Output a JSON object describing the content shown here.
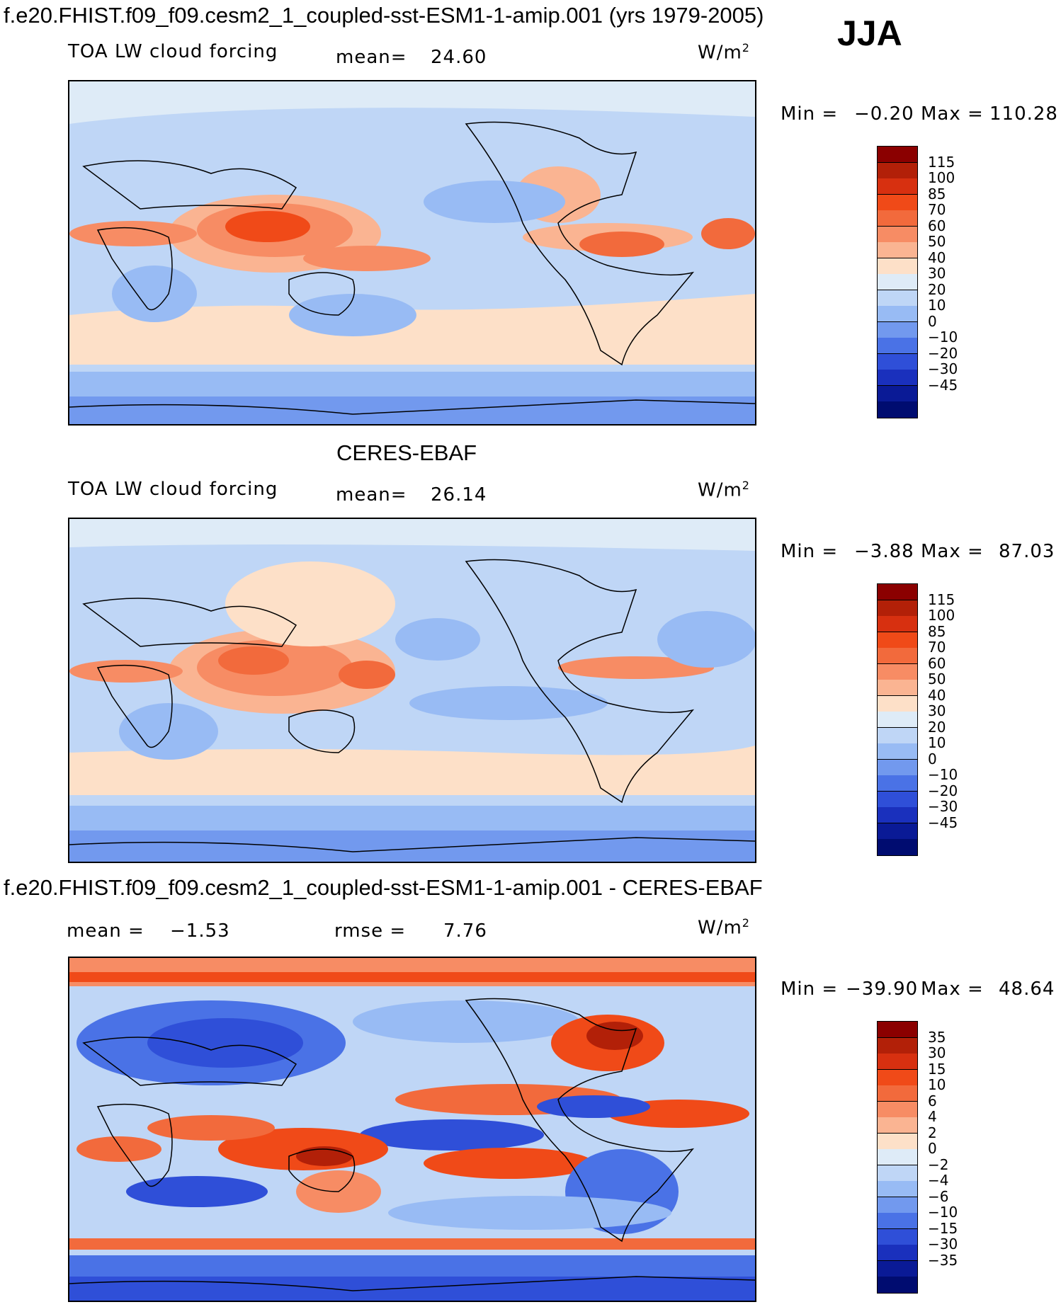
{
  "header": {
    "title": "f.e20.FHIST.f09_f09.cesm2_1_coupled-sst-ESM1-1-amip.001 (yrs 1979-2005)",
    "season": "JJA"
  },
  "panels": [
    {
      "id": "model",
      "caption": "",
      "left_label": "TOA LW cloud forcing",
      "mid_key": "mean=",
      "mid_value": "24.60",
      "units_base": "W/m",
      "units_exp": "2",
      "minmax": {
        "min_label": "Min =",
        "min_value": "−0.20",
        "max_label": "Max =",
        "max_value": "110.28"
      },
      "palette": "abs"
    },
    {
      "id": "obs",
      "caption": "CERES-EBAF",
      "left_label": "TOA LW cloud forcing",
      "mid_key": "mean=",
      "mid_value": "26.14",
      "units_base": "W/m",
      "units_exp": "2",
      "minmax": {
        "min_label": "Min =",
        "min_value": "−3.88",
        "max_label": "Max =",
        "max_value": "87.03"
      },
      "palette": "abs"
    },
    {
      "id": "diff",
      "caption": "f.e20.FHIST.f09_f09.cesm2_1_coupled-sst-ESM1-1-amip.001 - CERES-EBAF",
      "left_key": "mean =",
      "left_value": "−1.53",
      "mid_key": "rmse =",
      "mid_value": "7.76",
      "units_base": "W/m",
      "units_exp": "2",
      "minmax": {
        "min_label": "Min =",
        "min_value": "−39.90",
        "max_label": "Max =",
        "max_value": "48.64"
      },
      "palette": "diff"
    }
  ],
  "chart_data": [
    {
      "type": "heatmap",
      "title": "TOA LW cloud forcing (model, JJA)",
      "mean": 24.6,
      "min": -0.2,
      "max": 110.28,
      "units": "W/m2",
      "colorbar_ticks": [
        "115",
        "100",
        "85",
        "70",
        "60",
        "50",
        "40",
        "30",
        "20",
        "10",
        "0",
        "−10",
        "−20",
        "−30",
        "−45"
      ],
      "colorbar_colors": [
        "#8b0000",
        "#b22008",
        "#d73010",
        "#f04a18",
        "#f26a3c",
        "#f78c64",
        "#fab492",
        "#fde0c8",
        "#deebf7",
        "#bfd6f6",
        "#98bbf4",
        "#7299ee",
        "#4a72e6",
        "#2f4fd8",
        "#1a30bd",
        "#0a1a96",
        "#000c70"
      ]
    },
    {
      "type": "heatmap",
      "title": "TOA LW cloud forcing (CERES-EBAF, JJA)",
      "mean": 26.14,
      "min": -3.88,
      "max": 87.03,
      "units": "W/m2",
      "colorbar_ticks": [
        "115",
        "100",
        "85",
        "70",
        "60",
        "50",
        "40",
        "30",
        "20",
        "10",
        "0",
        "−10",
        "−20",
        "−30",
        "−45"
      ],
      "colorbar_colors": [
        "#8b0000",
        "#b22008",
        "#d73010",
        "#f04a18",
        "#f26a3c",
        "#f78c64",
        "#fab492",
        "#fde0c8",
        "#deebf7",
        "#bfd6f6",
        "#98bbf4",
        "#7299ee",
        "#4a72e6",
        "#2f4fd8",
        "#1a30bd",
        "#0a1a96",
        "#000c70"
      ]
    },
    {
      "type": "heatmap",
      "title": "Model minus CERES-EBAF (JJA)",
      "mean": -1.53,
      "rmse": 7.76,
      "min": -39.9,
      "max": 48.64,
      "units": "W/m2",
      "colorbar_ticks": [
        "35",
        "30",
        "15",
        "10",
        "6",
        "4",
        "2",
        "0",
        "−2",
        "−4",
        "−6",
        "−10",
        "−15",
        "−30",
        "−35"
      ],
      "colorbar_colors": [
        "#8b0000",
        "#b22008",
        "#d73010",
        "#f04a18",
        "#f26a3c",
        "#f78c64",
        "#fab492",
        "#fde0c8",
        "#deebf7",
        "#bfd6f6",
        "#98bbf4",
        "#7299ee",
        "#4a72e6",
        "#2f4fd8",
        "#1a30bd",
        "#0a1a96",
        "#000c70"
      ]
    }
  ]
}
